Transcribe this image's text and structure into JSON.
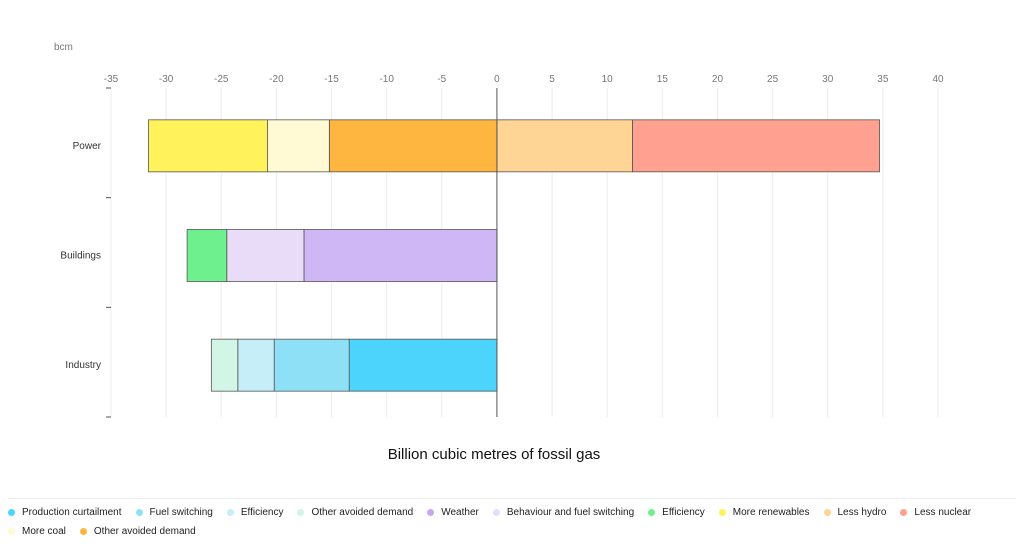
{
  "chart_data": {
    "type": "bar",
    "orientation": "horizontal",
    "stacked": true,
    "unit": "bcm",
    "xlabel": "Billion cubic metres of fossil gas",
    "xlim": [
      -35,
      40
    ],
    "xticks": [
      -35,
      -30,
      -25,
      -20,
      -15,
      -10,
      -5,
      0,
      5,
      10,
      15,
      20,
      25,
      30,
      35,
      40
    ],
    "grid": true,
    "legend_position": "bottom",
    "categories": [
      "Power",
      "Buildings",
      "Industry"
    ],
    "bars": [
      {
        "category": "Power",
        "segments": [
          {
            "series": "Other avoided demand",
            "value": -15.2
          },
          {
            "series": "More coal",
            "value": -5.6
          },
          {
            "series": "More renewables",
            "value": -10.8
          },
          {
            "series": "Less hydro",
            "value": 12.3
          },
          {
            "series": "Less nuclear",
            "value": 22.4
          }
        ]
      },
      {
        "category": "Buildings",
        "segments": [
          {
            "series": "Weather",
            "value": -17.5
          },
          {
            "series": "Behaviour and fuel switching",
            "value": -7.0
          },
          {
            "series": "Efficiency (Buildings)",
            "value": -3.6
          }
        ]
      },
      {
        "category": "Industry",
        "segments": [
          {
            "series": "Production curtailment",
            "value": -13.4
          },
          {
            "series": "Fuel switching",
            "value": -6.8
          },
          {
            "series": "Efficiency (Industry)",
            "value": -3.3
          },
          {
            "series": "Other avoided demand (Industry)",
            "value": -2.4
          }
        ]
      }
    ],
    "legend": [
      {
        "label": "Production curtailment",
        "color": "#4dd4fc"
      },
      {
        "label": "Fuel switching",
        "color": "#8ee0f7"
      },
      {
        "label": "Efficiency",
        "color": "#c6eef9"
      },
      {
        "label": "Other avoided demand",
        "color": "#d2f6e6"
      },
      {
        "label": "Weather",
        "color": "#c7a7f0"
      },
      {
        "label": "Behaviour and fuel switching",
        "color": "#e8dcf9"
      },
      {
        "label": "Efficiency",
        "color": "#6ff08f"
      },
      {
        "label": "More renewables",
        "color": "#fff25a"
      },
      {
        "label": "Less hydro",
        "color": "#ffd596"
      },
      {
        "label": "Less nuclear",
        "color": "#ffa091"
      },
      {
        "label": "More coal",
        "color": "#fff9d4"
      },
      {
        "label": "Other avoided demand",
        "color": "#ffb640"
      }
    ],
    "colors": {
      "Production curtailment": "#4dd4fc",
      "Fuel switching": "#8ee0f7",
      "Efficiency (Industry)": "#c6eef9",
      "Other avoided demand (Industry)": "#d2f6e6",
      "Weather": "#cfb6f5",
      "Behaviour and fuel switching": "#e8dcf9",
      "Efficiency (Buildings)": "#6ff08f",
      "More renewables": "#fff25a",
      "Less hydro": "#ffd596",
      "Less nuclear": "#ffa091",
      "More coal": "#fff9d4",
      "Other avoided demand": "#ffb640"
    }
  }
}
